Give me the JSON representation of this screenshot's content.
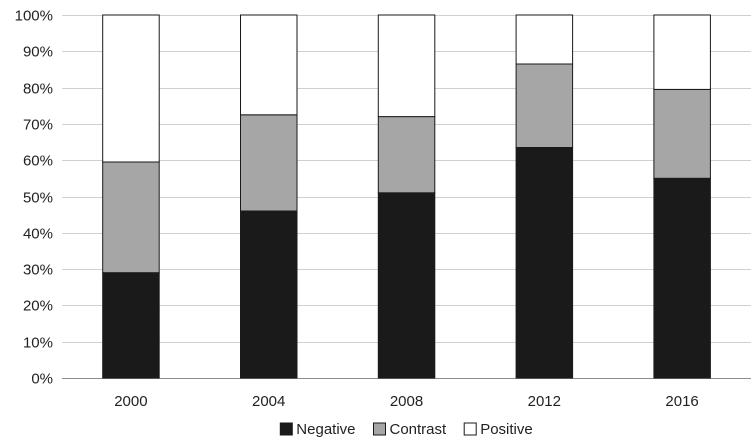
{
  "chart_data": {
    "type": "bar",
    "stacked": true,
    "percent_stacked": true,
    "title": "",
    "xlabel": "",
    "ylabel": "",
    "categories": [
      "2000",
      "2004",
      "2008",
      "2012",
      "2016"
    ],
    "series": [
      {
        "name": "Negative",
        "color": "#1a1a1a",
        "values": [
          29,
          46,
          51,
          63.5,
          55
        ]
      },
      {
        "name": "Contrast",
        "color": "#a6a6a6",
        "values": [
          30.5,
          26.5,
          21,
          23,
          24.5
        ]
      },
      {
        "name": "Positive",
        "color": "#ffffff",
        "values": [
          40.5,
          27.5,
          28,
          13.5,
          20.5
        ]
      }
    ],
    "ylim": [
      0,
      100
    ],
    "yticks": [
      0,
      10,
      20,
      30,
      40,
      50,
      60,
      70,
      80,
      90,
      100
    ],
    "ytick_labels": [
      "0%",
      "10%",
      "20%",
      "30%",
      "40%",
      "50%",
      "60%",
      "70%",
      "80%",
      "90%",
      "100%"
    ],
    "grid": true,
    "legend": "bottom-center"
  }
}
